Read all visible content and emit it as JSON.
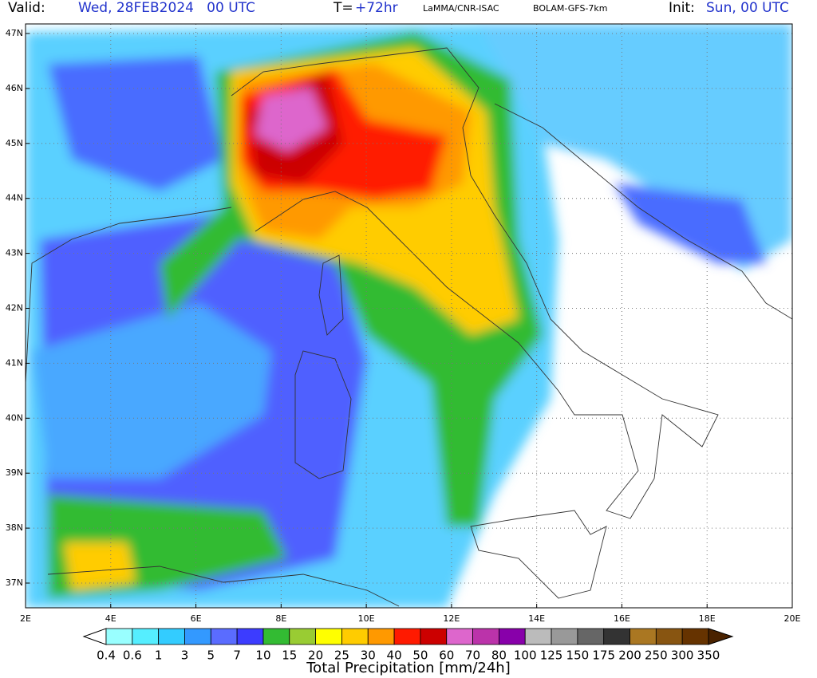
{
  "header": {
    "valid_label": "Valid:",
    "valid_time": "Wed, 28FEB2024   00 UTC",
    "lead_label": "T=",
    "lead_time": "+72hr",
    "institution": "LaMMA/CNR-ISAC",
    "model": "BOLAM-GFS-7km",
    "init_label": "Init:",
    "init_time": "Sun, 00 UTC"
  },
  "map": {
    "lat_labels": [
      "47N",
      "46N",
      "45N",
      "44N",
      "43N",
      "42N",
      "41N",
      "40N",
      "39N",
      "38N",
      "37N"
    ],
    "lon_labels": [
      "2E",
      "4E",
      "6E",
      "8E",
      "10E",
      "12E",
      "14E",
      "16E",
      "18E",
      "20E"
    ]
  },
  "colorbar": {
    "labels": [
      "0.4",
      "0.6",
      "1",
      "3",
      "5",
      "7",
      "10",
      "15",
      "20",
      "25",
      "30",
      "40",
      "50",
      "60",
      "70",
      "80",
      "100",
      "125",
      "150",
      "175",
      "200",
      "250",
      "300",
      "350"
    ],
    "colors": [
      "#99ffff",
      "#55eeff",
      "#33ccff",
      "#3399ff",
      "#5a6cff",
      "#3c3cff",
      "#33bb33",
      "#99cc33",
      "#ffff00",
      "#ffcc00",
      "#ff9900",
      "#ff1a00",
      "#cc0000",
      "#dd66cc",
      "#bb33aa",
      "#8800aa",
      "#bbbbbb",
      "#999999",
      "#666666",
      "#333333",
      "#aa7722",
      "#885511",
      "#663300"
    ],
    "title": "Total Precipitation [mm/24h]"
  }
}
